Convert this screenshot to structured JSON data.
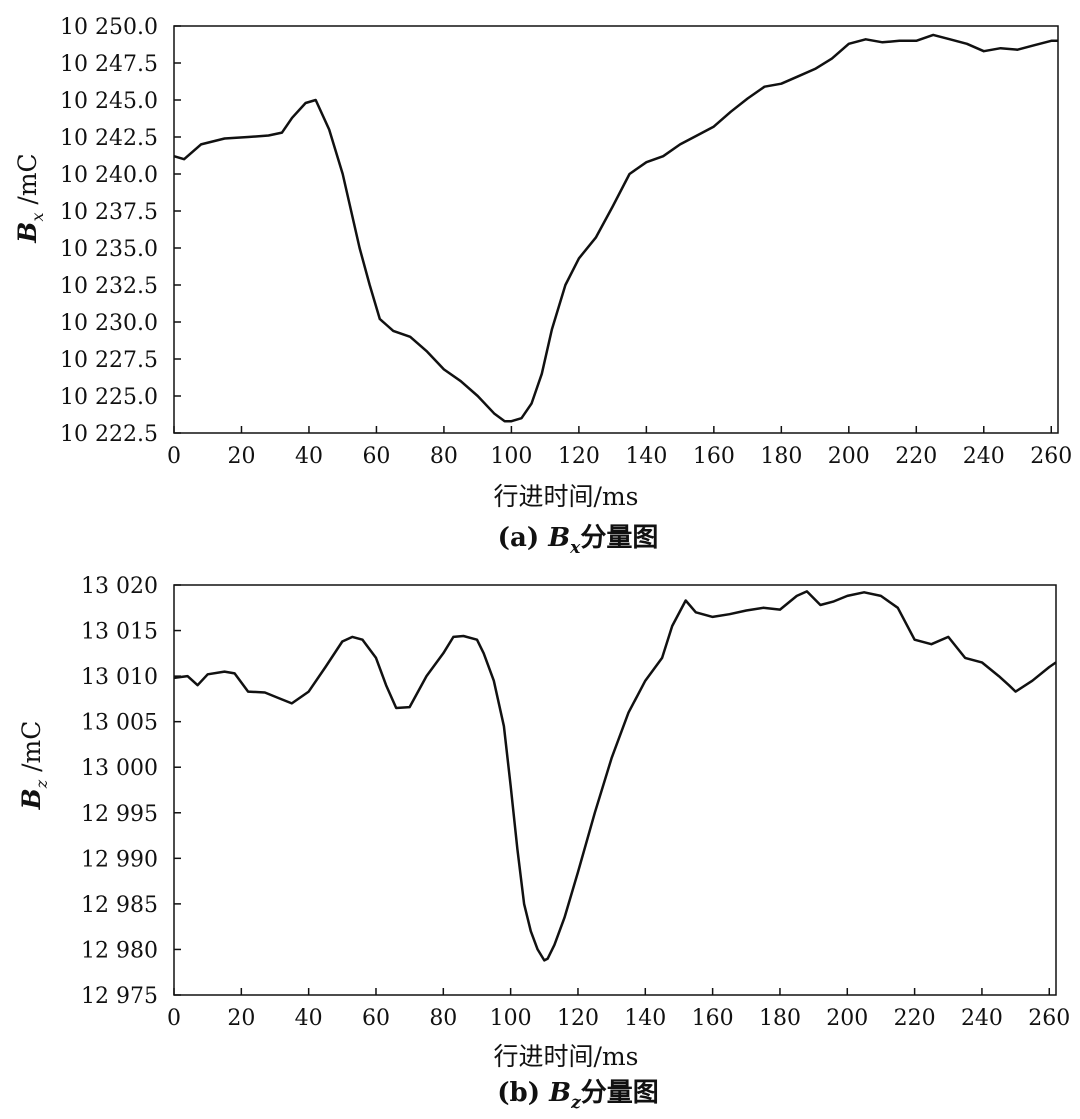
{
  "charts": [
    {
      "caption_prefix": "(a)",
      "caption_var": "B",
      "caption_sub": "x",
      "caption_suffix": "分量图",
      "ylabel_var": "B",
      "ylabel_sub": "x",
      "ylabel_unit": " /mC",
      "xlabel": "行进时间/ms",
      "xticks": [
        "0",
        "20",
        "40",
        "60",
        "80",
        "100",
        "120",
        "140",
        "160",
        "180",
        "200",
        "220",
        "240",
        "260"
      ],
      "yticks": [
        "10 222.5",
        "10 225.0",
        "10 227.5",
        "10 230.0",
        "10 232.5",
        "10 235.0",
        "10 237.5",
        "10 240.0",
        "10 242.5",
        "10 245.0",
        "10 247.5",
        "10 250.0"
      ]
    },
    {
      "caption_prefix": "(b)",
      "caption_var": "B",
      "caption_sub": "z",
      "caption_suffix": "分量图",
      "ylabel_var": "B",
      "ylabel_sub": "z",
      "ylabel_unit": " /mC",
      "xlabel": "行进时间/ms",
      "xticks": [
        "0",
        "20",
        "40",
        "60",
        "80",
        "100",
        "120",
        "140",
        "160",
        "180",
        "200",
        "220",
        "240",
        "260"
      ],
      "yticks": [
        "12 975",
        "12 980",
        "12 985",
        "12 990",
        "12 995",
        "13 000",
        "13 005",
        "13 010",
        "13 015",
        "13 020"
      ]
    }
  ],
  "chart_data": [
    {
      "type": "line",
      "xlabel": "行进时间/ms",
      "ylabel": "Bx /mC",
      "xlim": [
        0,
        262
      ],
      "ylim": [
        10222.5,
        10250.0
      ],
      "grid": false,
      "series": [
        {
          "x": [
            0,
            3,
            8,
            15,
            22,
            28,
            32,
            35,
            39,
            42,
            46,
            50,
            55,
            58,
            61,
            63,
            65,
            70,
            75,
            80,
            85,
            90,
            95,
            98,
            100,
            103,
            106,
            109,
            112,
            116,
            120,
            125,
            130,
            135,
            140,
            145,
            150,
            155,
            160,
            165,
            170,
            175,
            180,
            185,
            190,
            195,
            200,
            205,
            210,
            215,
            220,
            225,
            230,
            235,
            240,
            245,
            250,
            255,
            260,
            262
          ],
          "y": [
            10241.2,
            10241.0,
            10242.0,
            10242.4,
            10242.5,
            10242.6,
            10242.8,
            10243.8,
            10244.8,
            10245.0,
            10243.0,
            10240.0,
            10235.0,
            10232.5,
            10230.2,
            10229.8,
            10229.4,
            10229.0,
            10228.0,
            10226.8,
            10226.0,
            10225.0,
            10223.8,
            10223.3,
            10223.3,
            10223.5,
            10224.5,
            10226.5,
            10229.5,
            10232.5,
            10234.3,
            10235.7,
            10237.8,
            10240.0,
            10240.8,
            10241.2,
            10242.0,
            10242.6,
            10243.2,
            10244.2,
            10245.1,
            10245.9,
            10246.1,
            10246.6,
            10247.1,
            10247.8,
            10248.8,
            10249.1,
            10248.9,
            10249.0,
            10249.0,
            10249.4,
            10249.1,
            10248.8,
            10248.3,
            10248.5,
            10248.4,
            10248.7,
            10249.0,
            10249.0
          ]
        }
      ]
    },
    {
      "type": "line",
      "xlabel": "行进时间/ms",
      "ylabel": "Bz /mC",
      "xlim": [
        0,
        262
      ],
      "ylim": [
        12975,
        13020
      ],
      "grid": false,
      "series": [
        {
          "x": [
            0,
            4,
            7,
            10,
            15,
            18,
            22,
            27,
            31,
            35,
            40,
            45,
            50,
            53,
            56,
            60,
            63,
            66,
            70,
            75,
            80,
            83,
            86,
            90,
            92,
            95,
            98,
            100,
            102,
            104,
            106,
            108,
            110,
            111,
            113,
            116,
            120,
            125,
            130,
            135,
            140,
            145,
            148,
            152,
            155,
            160,
            165,
            170,
            175,
            180,
            185,
            188,
            192,
            196,
            200,
            205,
            210,
            215,
            220,
            225,
            230,
            235,
            240,
            245,
            248,
            250,
            255,
            260,
            262
          ],
          "y": [
            13009.8,
            13010.0,
            13009.0,
            13010.2,
            13010.5,
            13010.3,
            13008.3,
            13008.2,
            13007.6,
            13007.0,
            13008.3,
            13011.0,
            13013.8,
            13014.3,
            13014.0,
            13012.0,
            13009.0,
            13006.5,
            13006.6,
            13010.0,
            13012.5,
            13014.3,
            13014.4,
            13014.0,
            13012.5,
            13009.5,
            13004.5,
            12998.0,
            12991.0,
            12985.0,
            12982.0,
            12980.0,
            12978.8,
            12979.0,
            12980.5,
            12983.5,
            12988.5,
            12995.0,
            13001.0,
            13006.0,
            13009.5,
            13012.0,
            13015.5,
            13018.3,
            13017.0,
            13016.5,
            13016.8,
            13017.2,
            13017.5,
            13017.3,
            13018.8,
            13019.3,
            13017.8,
            13018.2,
            13018.8,
            13019.2,
            13018.8,
            13017.5,
            13014.0,
            13013.5,
            13014.3,
            13012.0,
            13011.5,
            13010.0,
            13009.0,
            13008.3,
            13009.5,
            13011.0,
            13011.5
          ]
        }
      ]
    }
  ]
}
